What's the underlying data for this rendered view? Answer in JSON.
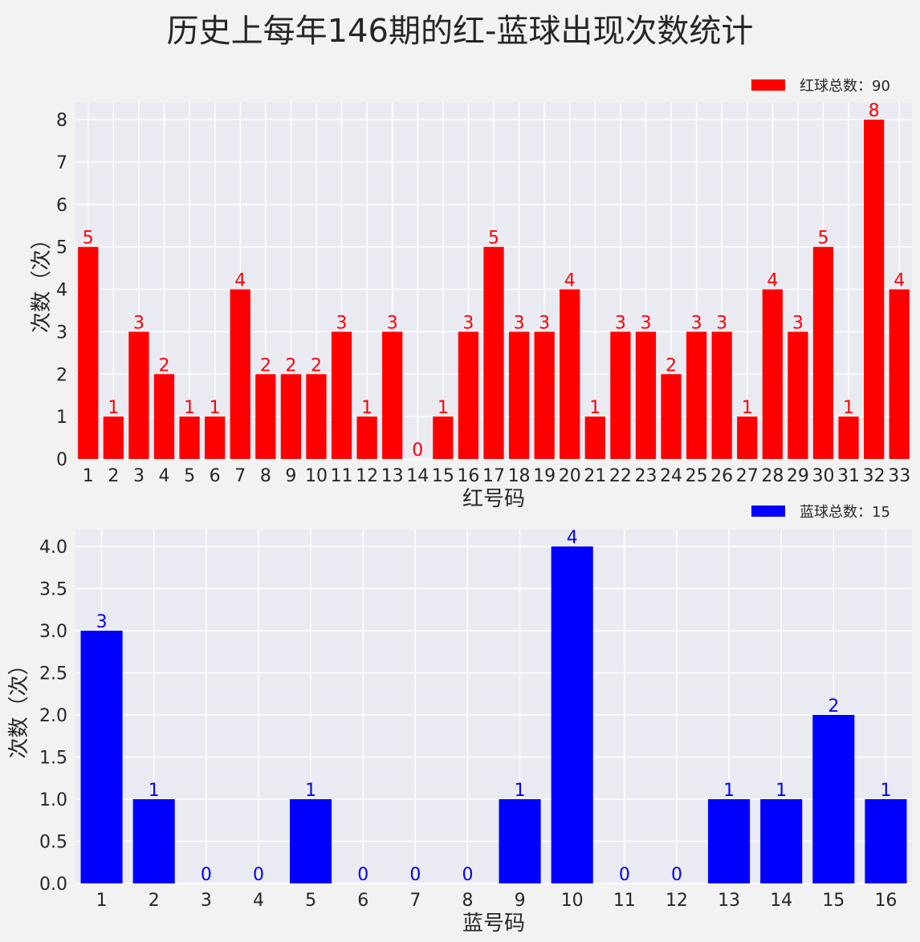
{
  "title": "历史上每年146期的红-蓝球出现次数统计",
  "chart_data": [
    {
      "type": "bar",
      "color": "#ff0000",
      "categories": [
        "1",
        "2",
        "3",
        "4",
        "5",
        "6",
        "7",
        "8",
        "9",
        "10",
        "11",
        "12",
        "13",
        "14",
        "15",
        "16",
        "17",
        "18",
        "19",
        "20",
        "21",
        "22",
        "23",
        "24",
        "25",
        "26",
        "27",
        "28",
        "29",
        "30",
        "31",
        "32",
        "33"
      ],
      "series": [
        {
          "name": "红球总数：90",
          "values": [
            5,
            1,
            3,
            2,
            1,
            1,
            4,
            2,
            2,
            2,
            3,
            1,
            3,
            0,
            1,
            3,
            5,
            3,
            3,
            4,
            1,
            3,
            3,
            2,
            3,
            3,
            1,
            4,
            3,
            5,
            1,
            8,
            4
          ]
        }
      ],
      "xlabel": "红号码",
      "ylabel": "次数（次）",
      "ylim": [
        0,
        8.4
      ],
      "yticks": [
        "0",
        "1",
        "2",
        "3",
        "4",
        "5",
        "6",
        "7",
        "8"
      ],
      "ytick_values": [
        0,
        1,
        2,
        3,
        4,
        5,
        6,
        7,
        8
      ],
      "grid": true,
      "legend": "top-right"
    },
    {
      "type": "bar",
      "color": "#0000ff",
      "categories": [
        "1",
        "2",
        "3",
        "4",
        "5",
        "6",
        "7",
        "8",
        "9",
        "10",
        "11",
        "12",
        "13",
        "14",
        "15",
        "16"
      ],
      "series": [
        {
          "name": "蓝球总数：15",
          "values": [
            3,
            1,
            0,
            0,
            1,
            0,
            0,
            0,
            1,
            4,
            0,
            0,
            1,
            1,
            2,
            1
          ]
        }
      ],
      "xlabel": "蓝号码",
      "ylabel": "次数（次）",
      "ylim": [
        0,
        4.2
      ],
      "yticks": [
        "0.0",
        "0.5",
        "1.0",
        "1.5",
        "2.0",
        "2.5",
        "3.0",
        "3.5",
        "4.0"
      ],
      "ytick_values": [
        0,
        0.5,
        1,
        1.5,
        2,
        2.5,
        3,
        3.5,
        4
      ],
      "grid": true,
      "legend": "top-right"
    }
  ]
}
